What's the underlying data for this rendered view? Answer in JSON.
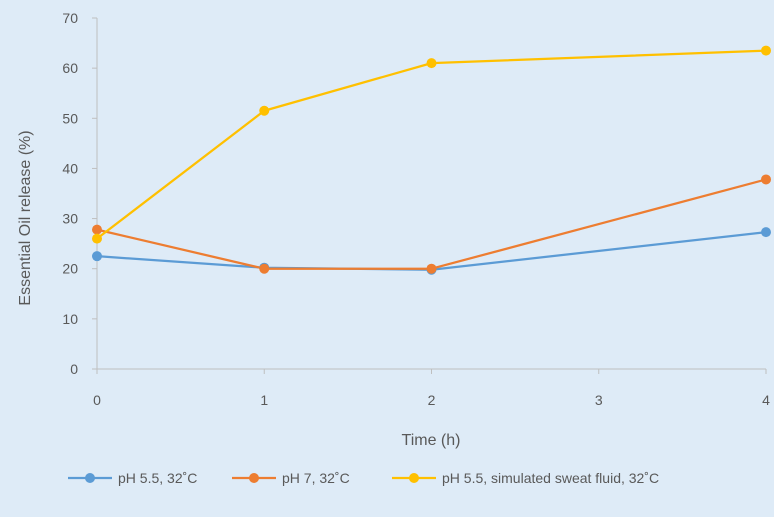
{
  "chart_data": {
    "type": "line",
    "xlabel": "Time (h)",
    "ylabel": "Essential Oil release (%)",
    "xlim": [
      0,
      4
    ],
    "ylim": [
      0,
      70
    ],
    "x_ticks": [
      "0",
      "1",
      "2",
      "3",
      "4"
    ],
    "y_ticks": [
      "0",
      "10",
      "20",
      "30",
      "40",
      "50",
      "60",
      "70"
    ],
    "grid": false,
    "legend_position": "bottom",
    "series": [
      {
        "name": "pH 5.5, 32˚C",
        "color": "#5b9bd5",
        "x": [
          0,
          1,
          2,
          4
        ],
        "y": [
          22.5,
          20.2,
          19.8,
          27.3
        ]
      },
      {
        "name": "pH 7, 32˚C",
        "color": "#ed7d31",
        "x": [
          0,
          1,
          2,
          4
        ],
        "y": [
          27.8,
          20.0,
          20.0,
          37.8
        ]
      },
      {
        "name": "pH 5.5, simulated sweat fluid, 32˚C",
        "color": "#ffc000",
        "x": [
          0,
          1,
          2,
          4
        ],
        "y": [
          26.0,
          51.5,
          61.0,
          63.5
        ]
      }
    ]
  }
}
